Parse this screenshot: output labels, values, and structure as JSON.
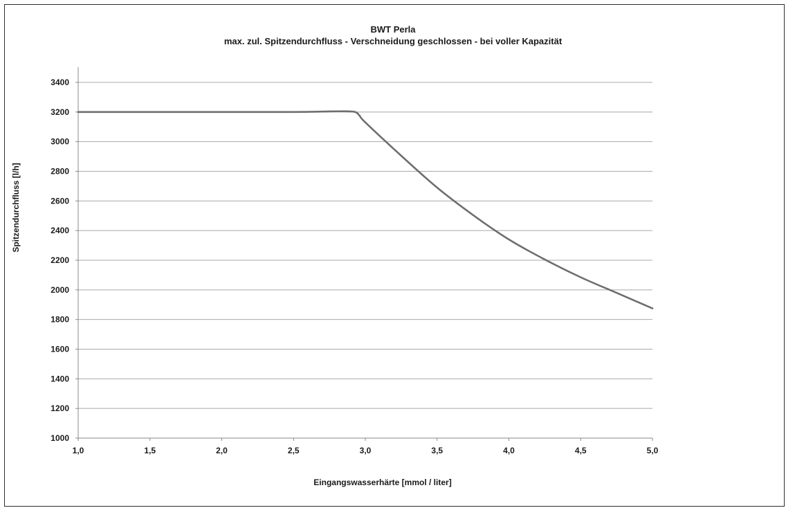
{
  "chart_data": {
    "type": "line",
    "title": "BWT Perla",
    "subtitle": "max. zul. Spitzendurchfluss - Verschneidung geschlossen - bei voller Kapazität",
    "xlabel": "Eingangswasserhärte [mmol / liter]",
    "ylabel": "Spitzendurchfluss [l/h]",
    "xlim": [
      1.0,
      5.0
    ],
    "ylim": [
      1000,
      3400
    ],
    "x_ticks": [
      1.0,
      1.5,
      2.0,
      2.5,
      3.0,
      3.5,
      4.0,
      4.5,
      5.0
    ],
    "x_tick_labels": [
      "1,0",
      "1,5",
      "2,0",
      "2,5",
      "3,0",
      "3,5",
      "4,0",
      "4,5",
      "5,0"
    ],
    "y_ticks": [
      1000,
      1200,
      1400,
      1600,
      1800,
      2000,
      2200,
      2400,
      2600,
      2800,
      3000,
      3200,
      3400
    ],
    "y_tick_labels": [
      "1000",
      "1200",
      "1400",
      "1600",
      "1800",
      "2000",
      "2200",
      "2400",
      "2600",
      "2800",
      "3000",
      "3200",
      "3400"
    ],
    "grid": "horizontal",
    "legend": "none",
    "series": [
      {
        "color": "#6e6e6e",
        "x": [
          1.0,
          1.5,
          2.0,
          2.5,
          2.7,
          2.85,
          2.93,
          2.96,
          3.0,
          3.25,
          3.5,
          3.75,
          4.0,
          4.25,
          4.5,
          4.75,
          5.0
        ],
        "y": [
          3200,
          3200,
          3200,
          3200,
          3203,
          3205,
          3200,
          3175,
          3130,
          2905,
          2690,
          2505,
          2340,
          2205,
          2085,
          1980,
          1875
        ]
      }
    ]
  }
}
